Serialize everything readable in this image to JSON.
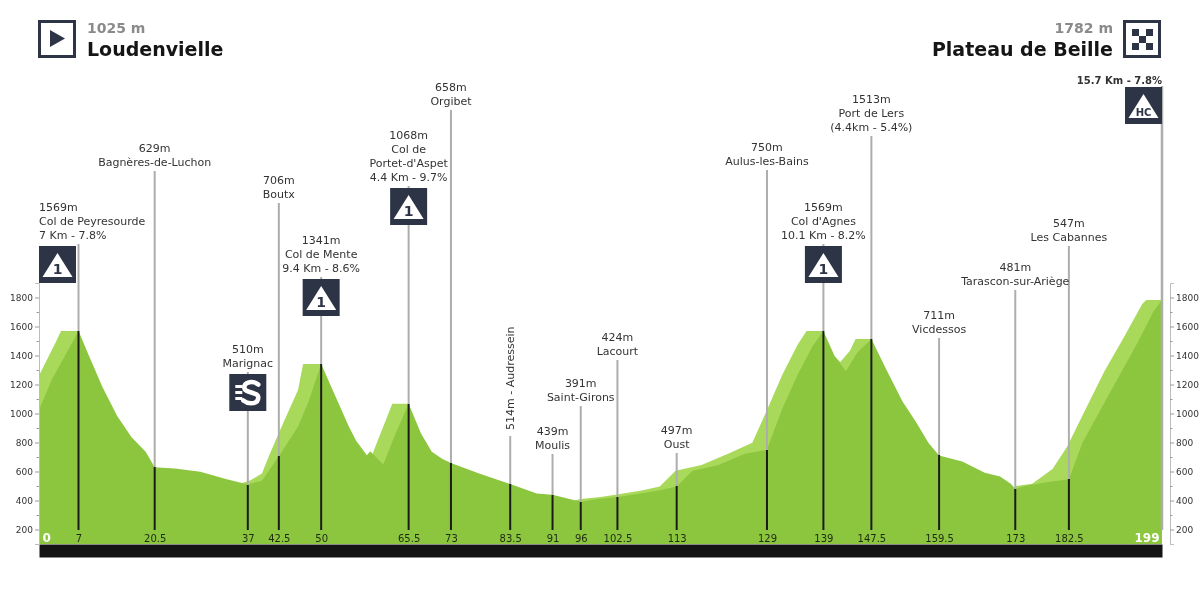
{
  "chart_data": {
    "type": "area",
    "xlim": [
      0,
      199
    ],
    "xticks": [
      0,
      7,
      20.5,
      37,
      42.5,
      50,
      65.5,
      73,
      83.5,
      91,
      96,
      102.5,
      113,
      129,
      139,
      147.5,
      159.5,
      173,
      182.5,
      199
    ],
    "ylim": [
      100,
      1900
    ],
    "yticks": [
      200,
      {
        "value": 300,
        "label": null
      },
      400,
      {
        "value": 500,
        "label": null
      },
      600,
      {
        "value": 700,
        "label": null
      },
      800,
      {
        "value": 900,
        "label": null
      },
      1000,
      {
        "value": 1100,
        "label": null
      },
      1200,
      {
        "value": 1300,
        "label": null
      },
      1400,
      {
        "value": 1500,
        "label": null
      },
      1600,
      {
        "value": 1700,
        "label": null
      },
      1800
    ],
    "y2lim": [
      100,
      1900
    ],
    "y2ticks": [
      200,
      {
        "value": 300,
        "label": null
      },
      400,
      {
        "value": 500,
        "label": null
      },
      600,
      {
        "value": 700,
        "label": null
      },
      800,
      {
        "value": 900,
        "label": null
      },
      1000,
      {
        "value": 1100,
        "label": null
      },
      1200,
      {
        "value": 1300,
        "label": null
      },
      1400,
      {
        "value": 1500,
        "label": null
      },
      1600,
      {
        "value": 1700,
        "label": null
      },
      1800
    ],
    "series": [
      {
        "color": "#a9d95b",
        "x": [
          0,
          2.9,
          3.9,
          7,
          8,
          36,
          37.5,
          39.5,
          40.8,
          43.3,
          45.9,
          46.8,
          50,
          51,
          59,
          62.6,
          65.5,
          66,
          95,
          96,
          99.5,
          103,
          107,
          110,
          112.8,
          117.4,
          122.1,
          126.4,
          129.1,
          131.7,
          134.4,
          136,
          139,
          140,
          141,
          142,
          143.7,
          144.7,
          147.5,
          148,
          173,
          176,
          179.6,
          182.2,
          185.5,
          188.8,
          192.2,
          195.5,
          196.2,
          199
        ],
        "values": [
          1262,
          1487,
          1569,
          1569,
          null,
          520,
          540,
          587,
          712,
          937,
          1162,
          1341,
          1341,
          null,
          712,
          1068,
          1068,
          null,
          401,
          410,
          424,
          445,
          470,
          497,
          605,
          644,
          722,
          799,
          1032,
          1265,
          1472,
          1569,
          1569,
          null,
          1394,
          1355,
          1433,
          1513,
          1513,
          null,
          500,
          515,
          618,
          773,
          1032,
          1291,
          1523,
          1756,
          1782,
          1782
        ]
      },
      {
        "color": "#8cc63f",
        "x": [
          0,
          2.3,
          4.8,
          7,
          8.7,
          11.2,
          13.8,
          16.4,
          18.9,
          20.5,
          24.1,
          28.6,
          33.1,
          35.6,
          37,
          39.5,
          42.5,
          45.9,
          47.8,
          50,
          52.9,
          54.9,
          56.2,
          58.1,
          58.7,
          61,
          63.2,
          65.5,
          67.7,
          69.6,
          71.5,
          73,
          78,
          83.5,
          88.2,
          91,
          96,
          99,
          102.5,
          106,
          110,
          113,
          115.8,
          120.4,
          125.1,
          129,
          131.7,
          134.4,
          137,
          139,
          141,
          143,
          145,
          147.5,
          150.3,
          153,
          155.6,
          157.6,
          159.5,
          163.6,
          167.6,
          170.3,
          172.2,
          173,
          174.9,
          178.9,
          182.5,
          184.9,
          188.2,
          191.5,
          194.8,
          197.5,
          199
        ],
        "values": [
          1025,
          1236,
          1412,
          1569,
          1412,
          1186,
          987,
          836,
          737,
          629,
          620,
          599,
          549,
          524,
          510,
          537,
          706,
          911,
          1087,
          1341,
          1087,
          911,
          812,
          712,
          740,
          649,
          862,
          1068,
          862,
          737,
          687,
          658,
          587,
          514,
          449,
          439,
          391,
          410,
          424,
          445,
          470,
          497,
          605,
          644,
          722,
          750,
          1032,
          1265,
          1458,
          1569,
          1394,
          1291,
          1420,
          1513,
          1291,
          1084,
          929,
          799,
          711,
          669,
          592,
          566,
          515,
          481,
          502,
          527,
          547,
          799,
          1032,
          1265,
          1498,
          1705,
          1782
        ]
      }
    ],
    "ref_lines": [
      {
        "axis": "x",
        "value": 7,
        "label": "1569m\nCol de Peyresourde\n7 Km - 7.8%"
      },
      {
        "axis": "x",
        "value": 20.5,
        "label": "629m\nBagnères-de-Luchon"
      },
      {
        "axis": "x",
        "value": 37,
        "label": "510m\nMarignac"
      },
      {
        "axis": "x",
        "value": 42.5,
        "label": "706m\nBoutx"
      },
      {
        "axis": "x",
        "value": 50,
        "label": "1341m\nCol de Mente\n9.4 Km - 8.6%"
      },
      {
        "axis": "x",
        "value": 65.5,
        "label": "1068m\nCol de\nPortet-d'Aspet\n4.4 Km - 9.7%"
      },
      {
        "axis": "x",
        "value": 73,
        "label": "658m\nOrgibet"
      },
      {
        "axis": "x",
        "value": 83.5,
        "label": "514m - Audressein"
      },
      {
        "axis": "x",
        "value": 91,
        "label": "439m\nMoulis"
      },
      {
        "axis": "x",
        "value": 96,
        "label": "391m\nSaint-Girons"
      },
      {
        "axis": "x",
        "value": 102.5,
        "label": "424m\nLacourt"
      },
      {
        "axis": "x",
        "value": 113,
        "label": "497m\nOust"
      },
      {
        "axis": "x",
        "value": 129,
        "label": "750m\nAulus-les-Bains"
      },
      {
        "axis": "x",
        "value": 139,
        "label": "1569m\nCol d'Agnes\n10.1 Km - 8.2%"
      },
      {
        "axis": "x",
        "value": 147.5,
        "label": "1513m\nPort de Lers\n(4.4km - 5.4%)"
      },
      {
        "axis": "x",
        "value": 159.5,
        "label": "711m\nVicdessos"
      },
      {
        "axis": "x",
        "value": 173,
        "label": "481m\nTarascon-sur-Ariège"
      },
      {
        "axis": "x",
        "value": 182.5,
        "label": "547m\nLes Cabannes"
      },
      {
        "axis": "x",
        "value": 199,
        "label": "15.7 Km - 7.8%"
      }
    ],
    "annotations": [
      "1025 m\nLoudenvielle",
      "1782 m\nPlateau de Beille",
      "1",
      "1",
      "1",
      "1",
      "HC"
    ]
  }
}
